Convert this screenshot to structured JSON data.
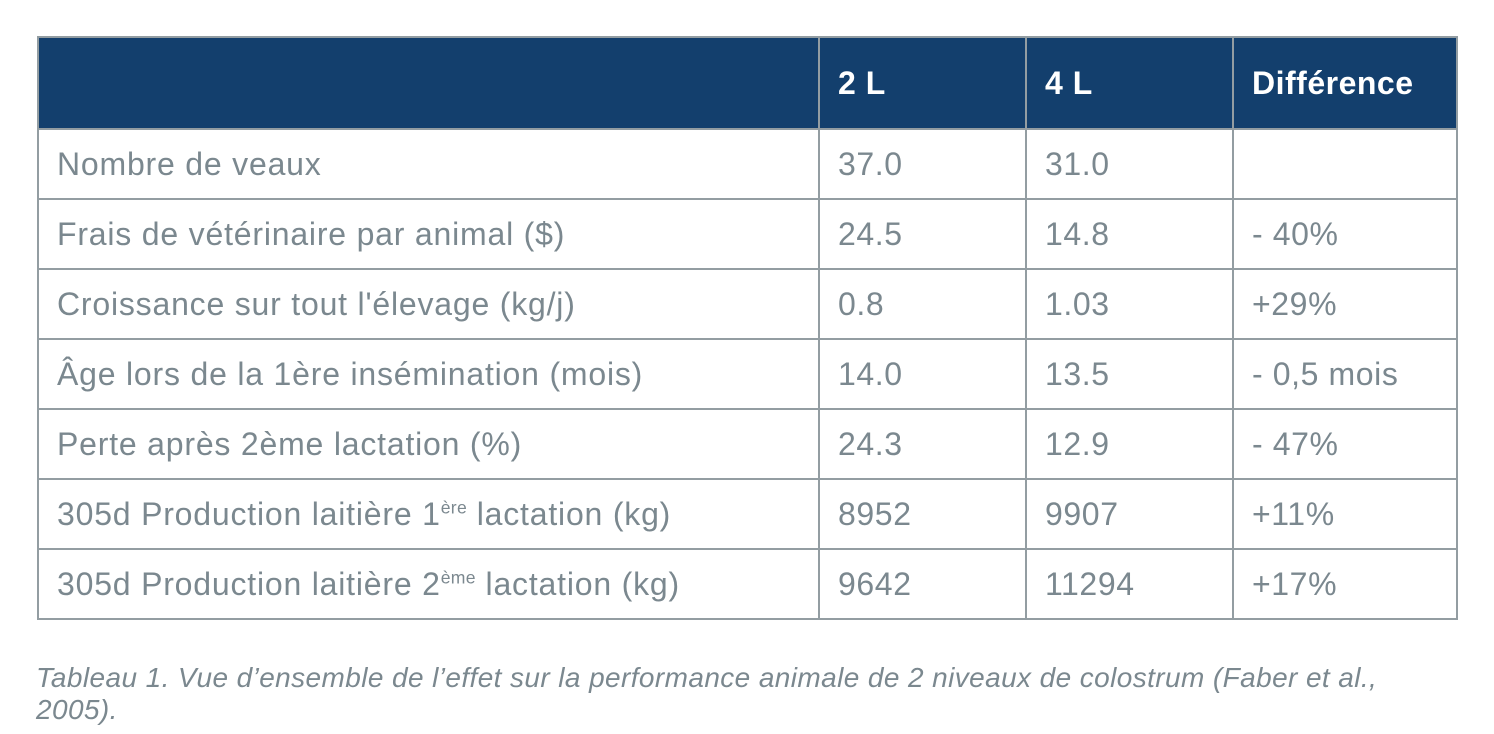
{
  "colors": {
    "header_background": "#133f6d",
    "header_text": "#ffffff",
    "body_text": "#7b888f",
    "border": "#939da2",
    "page_background": "#ffffff"
  },
  "chart_data": {
    "type": "table",
    "columns": [
      "",
      "2 L",
      "4 L",
      "Différence"
    ],
    "rows": [
      {
        "label": "Nombre de veaux",
        "values": [
          "37.0",
          "31.0",
          ""
        ]
      },
      {
        "label": "Frais de vétérinaire par animal ($)",
        "values": [
          "24.5",
          "14.8",
          "- 40%"
        ]
      },
      {
        "label": "Croissance sur tout l'élevage (kg/j)",
        "values": [
          "0.8",
          "1.03",
          "+29%"
        ]
      },
      {
        "label": "Âge lors de la 1ère insémination (mois)",
        "values": [
          "14.0",
          "13.5",
          "- 0,5 mois"
        ]
      },
      {
        "label": "Perte après 2ème lactation (%)",
        "values": [
          "24.3",
          "12.9",
          "- 47%"
        ]
      },
      {
        "label": "305d Production laitière 1ère lactation (kg)",
        "label_parts": {
          "pre": "305d Production laitière 1",
          "sup": "ère",
          "post": " lactation (kg)"
        },
        "values": [
          "8952",
          "9907",
          "+11%"
        ]
      },
      {
        "label": "305d Production laitière 2ème lactation (kg)",
        "label_parts": {
          "pre": "305d Production laitière 2",
          "sup": "ème",
          "post": " lactation (kg)"
        },
        "values": [
          "9642",
          "11294",
          "+17%"
        ]
      }
    ],
    "caption": "Tableau 1. Vue d’ensemble de l’effet sur la performance animale de 2 niveaux de colostrum (Faber et al., 2005).",
    "layout": {
      "grid": true,
      "header_row": true,
      "value_columns_align": "left"
    }
  }
}
